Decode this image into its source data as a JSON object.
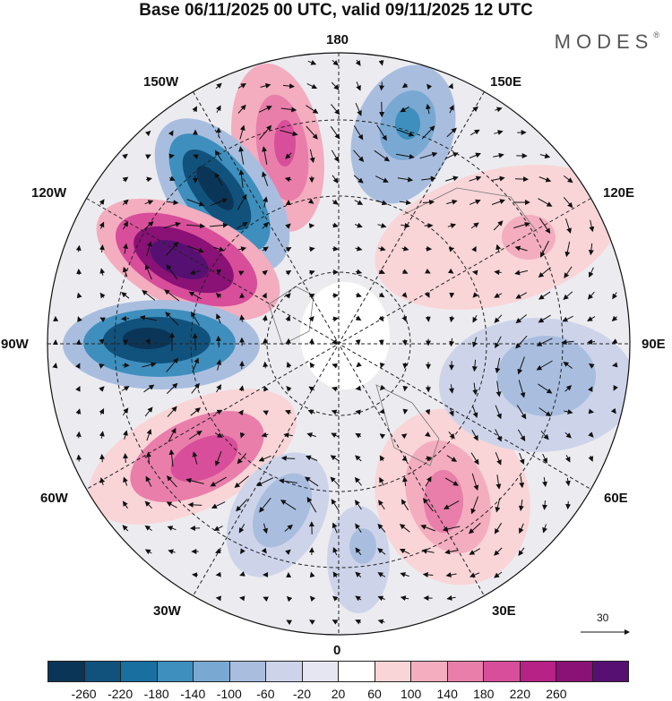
{
  "title": "Base 06/11/2025 00 UTC, valid 09/11/2025 12 UTC",
  "brand": {
    "name": "MODES",
    "mark": "®"
  },
  "map": {
    "projection": "north-polar-stereographic",
    "longitude_labels": [
      "180",
      "150E",
      "120E",
      "90E",
      "60E",
      "30E",
      "0",
      "30W",
      "60W",
      "90W",
      "120W",
      "150W"
    ],
    "vector_reference": "30",
    "field": "geopotential height anomaly with wind vectors"
  },
  "colorbar": {
    "ticks": [
      "-260",
      "-220",
      "-180",
      "-140",
      "-100",
      "-60",
      "-20",
      "20",
      "60",
      "100",
      "140",
      "180",
      "220",
      "260"
    ],
    "colors": [
      "#0b3557",
      "#11527d",
      "#1a6fa1",
      "#3e8fbd",
      "#79a9d2",
      "#a9bedf",
      "#cdd4ea",
      "#e6e6f2",
      "#ffffff",
      "#f9d5d8",
      "#f3adbf",
      "#e97eaa",
      "#d84e9a",
      "#b72286",
      "#8a1175",
      "#561072"
    ]
  }
}
